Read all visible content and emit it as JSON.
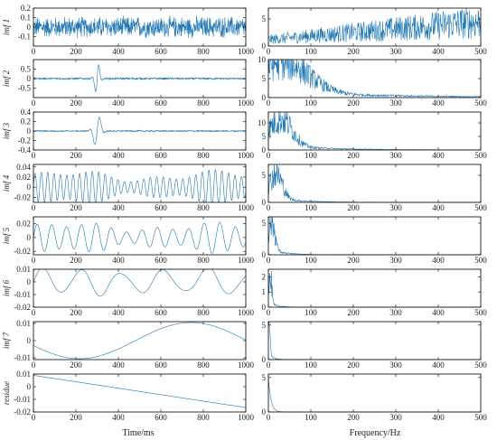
{
  "figure": {
    "xlabel_time": "Time/ms",
    "xlabel_freq": "Frequency/Hz",
    "line_color": "#1f77b4"
  },
  "chart_data": [
    {
      "type": "line",
      "panel": "imf1-time",
      "ylabel": "imf 1",
      "xlim": [
        0,
        1000
      ],
      "ylim": [
        -0.2,
        0.2
      ],
      "xticks": [
        "0",
        "200",
        "400",
        "600",
        "800",
        "1000"
      ],
      "yticks": [
        "-0.1",
        "0",
        "0.1",
        "0.2"
      ],
      "series": [
        {
          "kind": "noise",
          "amplitude": 0.09,
          "freq": 0.45
        }
      ]
    },
    {
      "type": "line",
      "panel": "imf1-freq",
      "xlim": [
        0,
        500
      ],
      "ylim": [
        0,
        7
      ],
      "xticks": [
        "0",
        "100",
        "200",
        "300",
        "400",
        "500"
      ],
      "yticks": [
        "0",
        "5"
      ],
      "series": [
        {
          "kind": "spectrum",
          "profile": "rising",
          "base": 1.2,
          "top": 4.5
        }
      ]
    },
    {
      "type": "line",
      "panel": "imf2-time",
      "ylabel": "imf 2",
      "xlim": [
        0,
        1000
      ],
      "ylim": [
        -1,
        1
      ],
      "xticks": [
        "0",
        "200",
        "400",
        "600",
        "800",
        "1000"
      ],
      "yticks": [
        "-0.5",
        "0",
        "0.5"
      ],
      "series": [
        {
          "kind": "noise_burst",
          "amplitude": 0.05,
          "freq": 0.15,
          "burst_center": 300,
          "burst_amp": 0.95,
          "burst_width": 15
        }
      ]
    },
    {
      "type": "line",
      "panel": "imf2-freq",
      "xlim": [
        0,
        500
      ],
      "ylim": [
        0,
        10
      ],
      "xticks": [
        "0",
        "100",
        "200",
        "300",
        "400",
        "500"
      ],
      "yticks": [
        "0",
        "5",
        "10"
      ],
      "series": [
        {
          "kind": "spectrum",
          "profile": "peak",
          "center": 35,
          "width": 80,
          "peak": 9.5
        }
      ]
    },
    {
      "type": "line",
      "panel": "imf3-time",
      "ylabel": "imf 3",
      "xlim": [
        0,
        1000
      ],
      "ylim": [
        -0.4,
        0.4
      ],
      "xticks": [
        "0",
        "200",
        "400",
        "600",
        "800",
        "1000"
      ],
      "yticks": [
        "-0.4",
        "-0.2",
        "0",
        "0.2",
        "0.4"
      ],
      "series": [
        {
          "kind": "noise_burst",
          "amplitude": 0.015,
          "freq": 0.06,
          "burst_center": 300,
          "burst_amp": 0.38,
          "burst_width": 22
        }
      ]
    },
    {
      "type": "line",
      "panel": "imf3-freq",
      "xlim": [
        0,
        500
      ],
      "ylim": [
        0,
        14
      ],
      "xticks": [
        "0",
        "100",
        "200",
        "300",
        "400",
        "500"
      ],
      "yticks": [
        "0",
        "5",
        "10"
      ],
      "series": [
        {
          "kind": "spectrum",
          "profile": "peak",
          "center": 30,
          "width": 35,
          "peak": 12
        }
      ]
    },
    {
      "type": "line",
      "panel": "imf4-time",
      "ylabel": "imf 4",
      "xlim": [
        0,
        1000
      ],
      "ylim": [
        -0.03,
        0.045
      ],
      "xticks": [
        "0",
        "200",
        "400",
        "600",
        "800",
        "1000"
      ],
      "yticks": [
        "-0.02",
        "0",
        "0.02",
        "0.04"
      ],
      "series": [
        {
          "kind": "osc",
          "amplitude": 0.022,
          "freq": 0.033,
          "mod": 0.35
        }
      ]
    },
    {
      "type": "line",
      "panel": "imf4-freq",
      "xlim": [
        0,
        500
      ],
      "ylim": [
        0,
        7
      ],
      "xticks": [
        "0",
        "100",
        "200",
        "300",
        "400",
        "500"
      ],
      "yticks": [
        "0",
        "5"
      ],
      "series": [
        {
          "kind": "spectrum",
          "profile": "peak",
          "center": 18,
          "width": 20,
          "peak": 5.5
        }
      ]
    },
    {
      "type": "line",
      "panel": "imf5-time",
      "ylabel": "imf 5",
      "xlim": [
        0,
        1000
      ],
      "ylim": [
        -0.025,
        0.03
      ],
      "xticks": [
        "0",
        "200",
        "400",
        "600",
        "800",
        "1000"
      ],
      "yticks": [
        "-0.02",
        "0",
        "0.02"
      ],
      "series": [
        {
          "kind": "osc",
          "amplitude": 0.015,
          "freq": 0.014,
          "mod": 0.3
        }
      ]
    },
    {
      "type": "line",
      "panel": "imf5-freq",
      "xlim": [
        0,
        500
      ],
      "ylim": [
        0,
        6
      ],
      "xticks": [
        "0",
        "100",
        "200",
        "300",
        "400",
        "500"
      ],
      "yticks": [
        "0",
        "5"
      ],
      "series": [
        {
          "kind": "spectrum",
          "profile": "peak",
          "center": 8,
          "width": 10,
          "peak": 5.5
        }
      ]
    },
    {
      "type": "line",
      "panel": "imf6-time",
      "ylabel": "imf 6",
      "xlim": [
        0,
        1000
      ],
      "ylim": [
        -0.02,
        0.01
      ],
      "xticks": [
        "0",
        "200",
        "400",
        "600",
        "800",
        "1000"
      ],
      "yticks": [
        "-0.02",
        "-0.01",
        "0",
        "0.01"
      ],
      "series": [
        {
          "kind": "osc",
          "amplitude": 0.009,
          "freq": 0.0052,
          "mod": 0.1
        }
      ]
    },
    {
      "type": "line",
      "panel": "imf6-freq",
      "xlim": [
        0,
        500
      ],
      "ylim": [
        0,
        2.5
      ],
      "xticks": [
        "0",
        "100",
        "200",
        "300",
        "400",
        "500"
      ],
      "yticks": [
        "0",
        "1",
        "2"
      ],
      "series": [
        {
          "kind": "spectrum",
          "profile": "peak",
          "center": 4,
          "width": 5,
          "peak": 2.2
        }
      ]
    },
    {
      "type": "line",
      "panel": "imf7-time",
      "ylabel": "imf 7",
      "xlim": [
        0,
        1000
      ],
      "ylim": [
        -0.011,
        0.011
      ],
      "xticks": [
        "0",
        "200",
        "400",
        "600",
        "800",
        "1000"
      ],
      "yticks": [
        "-0.01",
        "0",
        "0.01"
      ],
      "series": [
        {
          "kind": "slow",
          "amplitude": 0.0105
        }
      ]
    },
    {
      "type": "line",
      "panel": "imf7-freq",
      "xlim": [
        0,
        500
      ],
      "ylim": [
        0,
        5.5
      ],
      "xticks": [
        "0",
        "100",
        "200",
        "300",
        "400",
        "500"
      ],
      "yticks": [
        "0",
        "5"
      ],
      "series": [
        {
          "kind": "spectrum",
          "profile": "peak",
          "center": 2,
          "width": 3,
          "peak": 5
        }
      ]
    },
    {
      "type": "line",
      "panel": "residue-time",
      "ylabel": "residue",
      "xlim": [
        0,
        1000
      ],
      "ylim": [
        -0.02,
        0.01
      ],
      "xticks": [
        "0",
        "200",
        "400",
        "600",
        "800",
        "1000"
      ],
      "yticks": [
        "-0.02",
        "-0.01",
        "0",
        "0.01"
      ],
      "series": [
        {
          "kind": "linear",
          "start": 0.009,
          "end": -0.0165
        }
      ]
    },
    {
      "type": "line",
      "panel": "residue-freq",
      "xlim": [
        0,
        500
      ],
      "ylim": [
        0,
        5.5
      ],
      "xticks": [
        "0",
        "100",
        "200",
        "300",
        "400",
        "500"
      ],
      "yticks": [
        "0",
        "5"
      ],
      "series": [
        {
          "kind": "spectrum",
          "profile": "decay",
          "peak": 5,
          "decay": 6
        }
      ]
    }
  ]
}
